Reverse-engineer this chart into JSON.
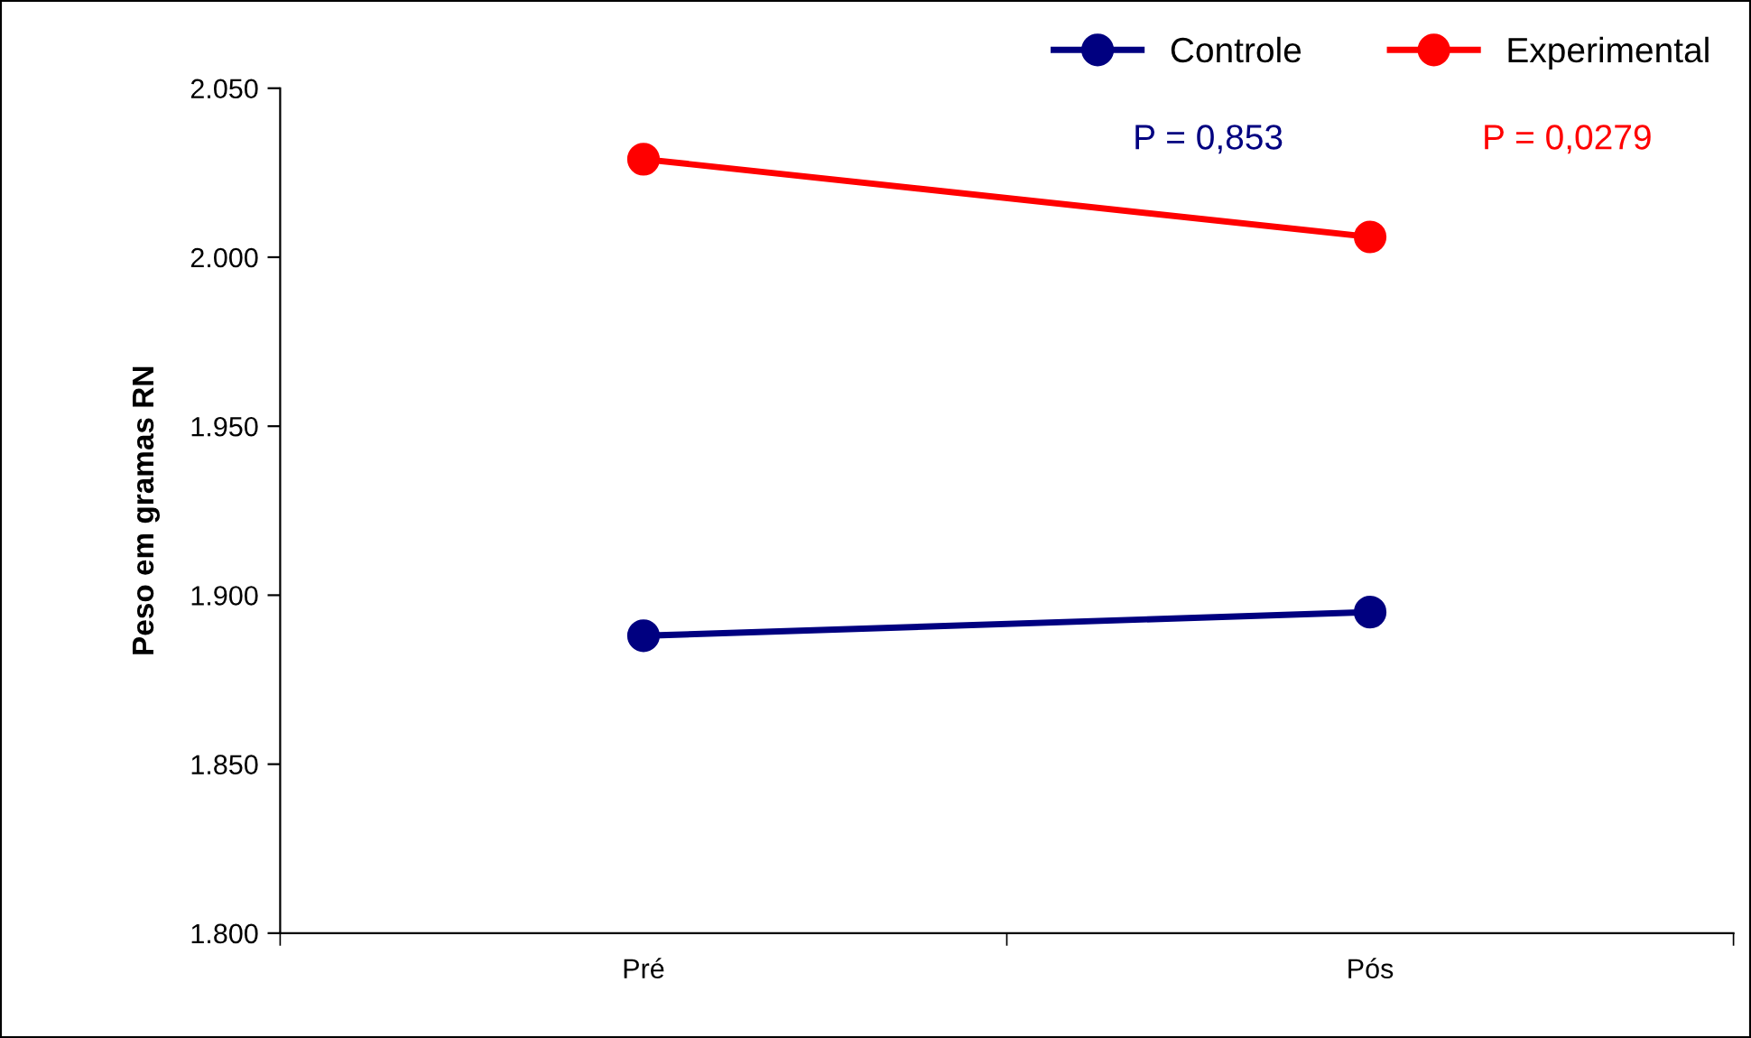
{
  "chart_data": {
    "type": "line",
    "ylabel": "Peso em gramas RN",
    "categories": [
      "Pré",
      "Pós"
    ],
    "series": [
      {
        "name": "Controle",
        "color": "#000080",
        "values": [
          1888,
          1895
        ]
      },
      {
        "name": "Experimental",
        "color": "#ff0000",
        "values": [
          2029,
          2006
        ]
      }
    ],
    "ylim": [
      1800,
      2050
    ],
    "yticks": [
      {
        "value": 1800,
        "label": "1.800"
      },
      {
        "value": 1850,
        "label": "1.850"
      },
      {
        "value": 1900,
        "label": "1.900"
      },
      {
        "value": 1950,
        "label": "1.950"
      },
      {
        "value": 2000,
        "label": "2.000"
      },
      {
        "value": 2050,
        "label": "2.050"
      }
    ],
    "annotations": [
      "P = 0,853",
      "P = 0,0279"
    ],
    "marker": "circle",
    "line_style": "solid",
    "legend": "top right",
    "grid": false
  }
}
